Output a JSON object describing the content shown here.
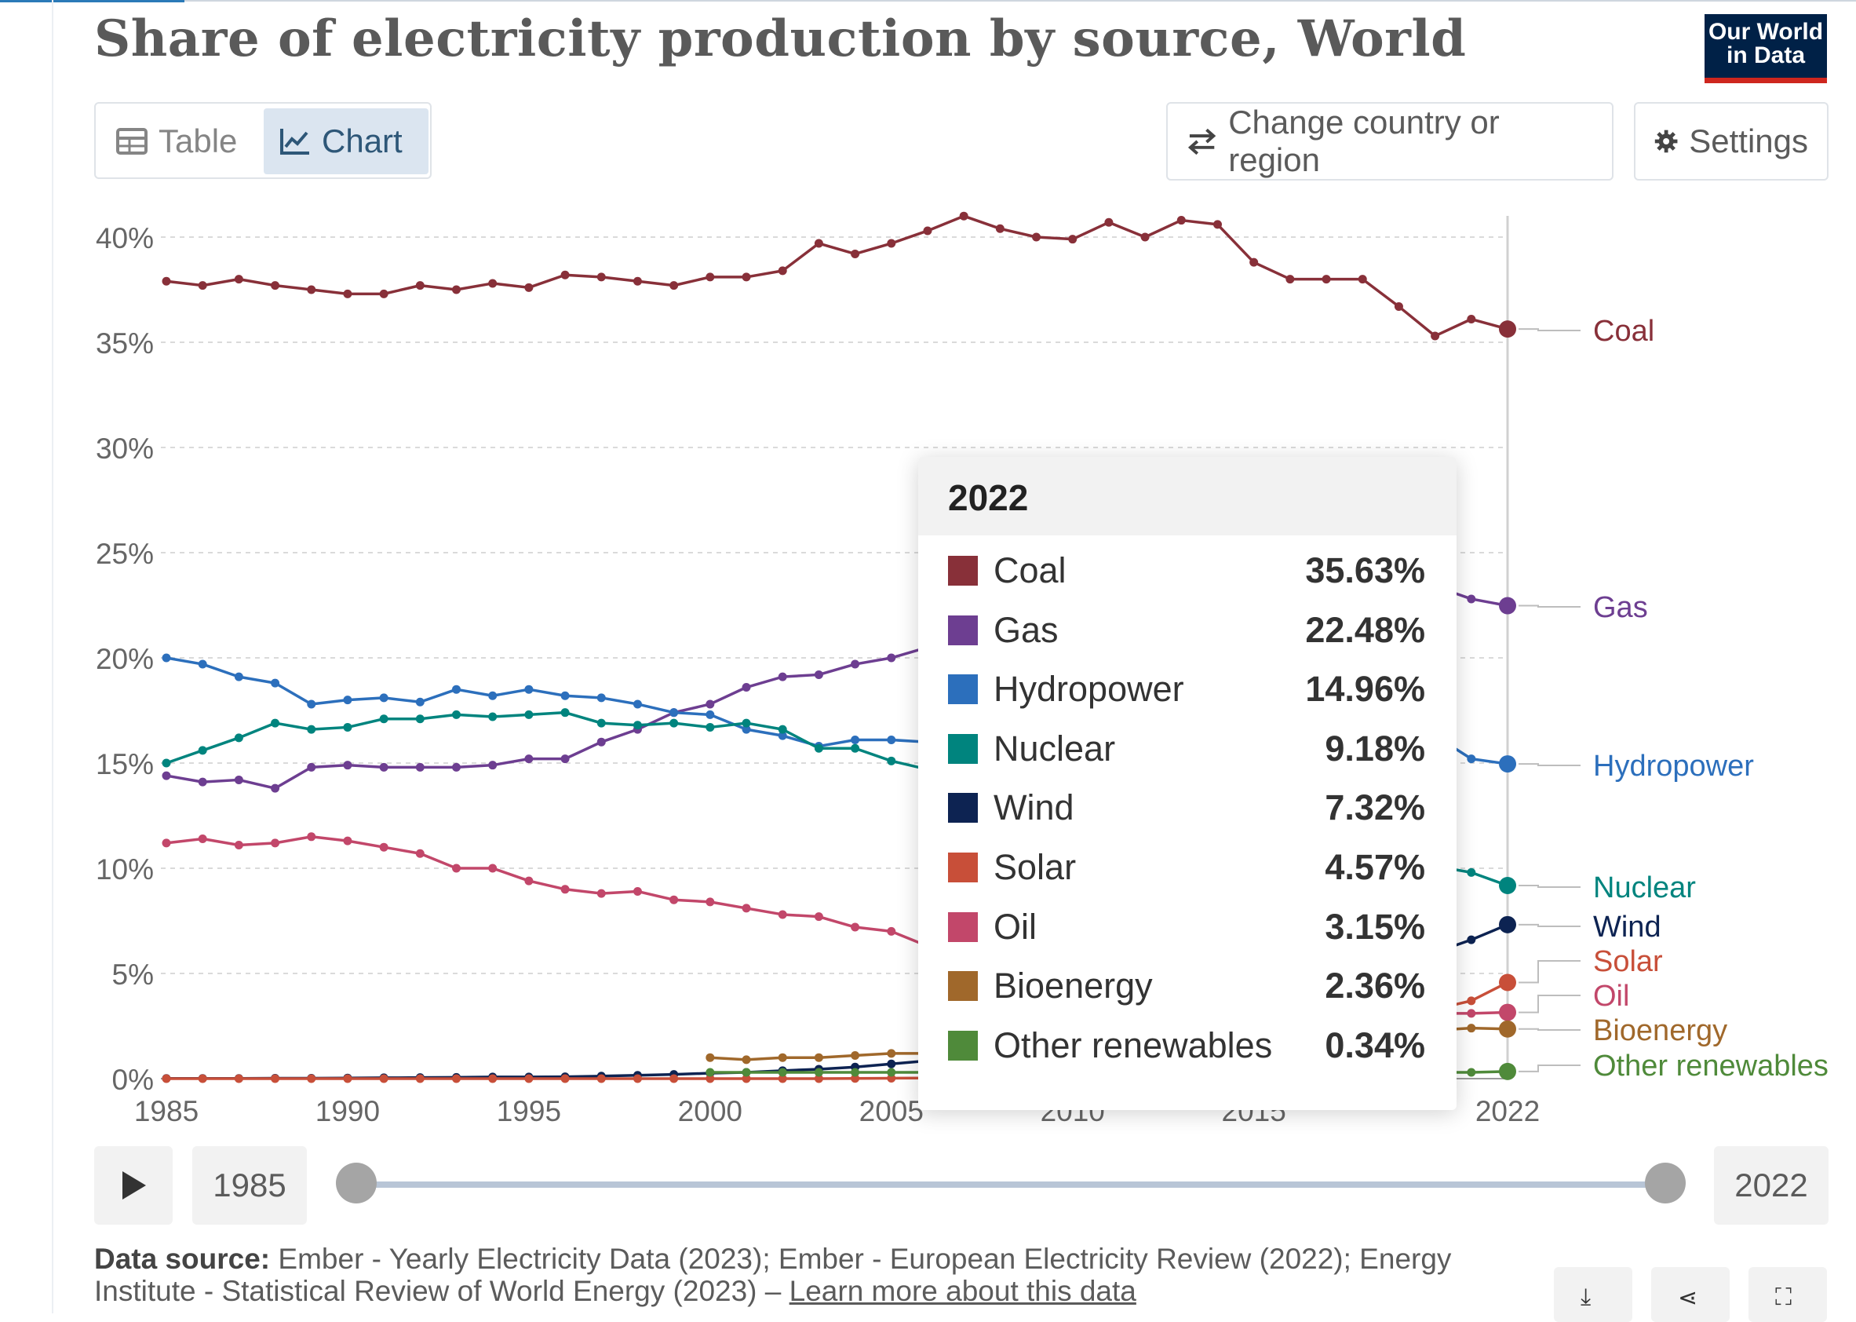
{
  "header": {
    "title": "Share of electricity production by source, World"
  },
  "logo": {
    "line1": "Our World",
    "line2": "in Data"
  },
  "tabs": [
    {
      "label": "Table",
      "icon": "table-icon",
      "active": false
    },
    {
      "label": "Chart",
      "icon": "line-chart-icon",
      "active": true
    }
  ],
  "controls": {
    "country_label": "Change country or region",
    "country_icon": "swap-arrows-icon",
    "settings_label": "Settings",
    "settings_icon": "gear-icon"
  },
  "tooltip": {
    "year": "2022",
    "rows": [
      {
        "name": "Coal",
        "value": "35.63%",
        "color": "#883039"
      },
      {
        "name": "Gas",
        "value": "22.48%",
        "color": "#6d3e91"
      },
      {
        "name": "Hydropower",
        "value": "14.96%",
        "color": "#2c6fbc"
      },
      {
        "name": "Nuclear",
        "value": "9.18%",
        "color": "#00847e"
      },
      {
        "name": "Wind",
        "value": "7.32%",
        "color": "#0d2352"
      },
      {
        "name": "Solar",
        "value": "4.57%",
        "color": "#c84f39"
      },
      {
        "name": "Oil",
        "value": "3.15%",
        "color": "#c2476a"
      },
      {
        "name": "Bioenergy",
        "value": "2.36%",
        "color": "#a0682b"
      },
      {
        "name": "Other renewables",
        "value": "0.34%",
        "color": "#4f8a3a"
      }
    ]
  },
  "timeline": {
    "start": "1985",
    "end": "2022",
    "play_icon": "play-icon"
  },
  "source": {
    "label": "Data source:",
    "text": "Ember - Yearly Electricity Data (2023); Ember - European Electricity Review (2022); Energy Institute - Statistical Review of World Energy (2023) –",
    "link": "Learn more about this data"
  },
  "footer_buttons": [
    {
      "icon": "download-icon",
      "glyph": "⤓"
    },
    {
      "icon": "share-icon",
      "glyph": "⋖"
    },
    {
      "icon": "fullscreen-icon",
      "glyph": "⛶"
    }
  ],
  "chart_data": {
    "type": "line",
    "title": "Share of electricity production by source, World",
    "x": [
      1985,
      1986,
      1987,
      1988,
      1989,
      1990,
      1991,
      1992,
      1993,
      1994,
      1995,
      1996,
      1997,
      1998,
      1999,
      2000,
      2001,
      2002,
      2003,
      2004,
      2005,
      2006,
      2007,
      2008,
      2009,
      2010,
      2011,
      2012,
      2013,
      2014,
      2015,
      2016,
      2017,
      2018,
      2019,
      2020,
      2021,
      2022
    ],
    "xticks": [
      "1985",
      "1990",
      "1995",
      "2000",
      "2005",
      "2010",
      "2015",
      "2022"
    ],
    "xtick_values": [
      1985,
      1990,
      1995,
      2000,
      2005,
      2010,
      2015,
      2022
    ],
    "ylim": [
      0,
      41
    ],
    "yticks": [
      0,
      5,
      10,
      15,
      20,
      25,
      30,
      35,
      40
    ],
    "ytick_labels": [
      "0%",
      "5%",
      "10%",
      "15%",
      "20%",
      "25%",
      "30%",
      "35%",
      "40%"
    ],
    "grid": true,
    "highlight_x": 2022,
    "series": [
      {
        "name": "Coal",
        "color": "#883039",
        "values": [
          37.9,
          37.7,
          38.0,
          37.7,
          37.5,
          37.3,
          37.3,
          37.7,
          37.5,
          37.8,
          37.6,
          38.2,
          38.1,
          37.9,
          37.7,
          38.1,
          38.1,
          38.4,
          39.7,
          39.2,
          39.7,
          40.3,
          41.0,
          40.4,
          40.0,
          39.9,
          40.7,
          40.0,
          40.8,
          40.6,
          38.8,
          38.0,
          38.0,
          38.0,
          36.7,
          35.3,
          36.1,
          35.63
        ]
      },
      {
        "name": "Gas",
        "color": "#6d3e91",
        "values": [
          14.4,
          14.1,
          14.2,
          13.8,
          14.8,
          14.9,
          14.8,
          14.8,
          14.8,
          14.9,
          15.2,
          15.2,
          16.0,
          16.6,
          17.4,
          17.8,
          18.6,
          19.1,
          19.2,
          19.7,
          20.0,
          20.5,
          21.1,
          21.4,
          21.5,
          22.0,
          22.2,
          22.8,
          22.3,
          22.1,
          22.9,
          23.2,
          23.3,
          23.2,
          23.5,
          23.4,
          22.8,
          22.48
        ]
      },
      {
        "name": "Hydropower",
        "color": "#2c6fbc",
        "values": [
          20.0,
          19.7,
          19.1,
          18.8,
          17.8,
          18.0,
          18.1,
          17.9,
          18.5,
          18.2,
          18.5,
          18.2,
          18.1,
          17.8,
          17.4,
          17.3,
          16.6,
          16.3,
          15.8,
          16.1,
          16.1,
          16.0,
          15.6,
          16.0,
          16.3,
          16.0,
          15.8,
          16.3,
          16.4,
          16.2,
          16.0,
          16.3,
          15.9,
          15.9,
          15.8,
          16.3,
          15.2,
          14.96
        ]
      },
      {
        "name": "Nuclear",
        "color": "#00847e",
        "values": [
          15.0,
          15.6,
          16.2,
          16.9,
          16.6,
          16.7,
          17.1,
          17.1,
          17.3,
          17.2,
          17.3,
          17.4,
          16.9,
          16.8,
          16.9,
          16.7,
          16.9,
          16.6,
          15.7,
          15.7,
          15.1,
          14.7,
          14.0,
          13.4,
          13.4,
          12.8,
          11.7,
          10.8,
          10.6,
          10.6,
          10.6,
          10.4,
          10.2,
          10.2,
          10.4,
          10.1,
          9.8,
          9.18
        ]
      },
      {
        "name": "Wind",
        "color": "#0d2352",
        "values": [
          0.01,
          0.01,
          0.01,
          0.02,
          0.02,
          0.03,
          0.04,
          0.05,
          0.06,
          0.08,
          0.08,
          0.09,
          0.12,
          0.16,
          0.2,
          0.26,
          0.3,
          0.38,
          0.45,
          0.55,
          0.7,
          0.85,
          1.0,
          1.3,
          1.6,
          2.0,
          2.4,
          2.8,
          3.0,
          3.4,
          3.8,
          4.2,
          4.7,
          5.0,
          5.5,
          6.0,
          6.6,
          7.32
        ]
      },
      {
        "name": "Solar",
        "color": "#c84f39",
        "values": [
          0,
          0,
          0,
          0,
          0,
          0,
          0,
          0,
          0,
          0,
          0,
          0,
          0,
          0,
          0,
          0,
          0,
          0,
          0,
          0.01,
          0.02,
          0.03,
          0.04,
          0.06,
          0.1,
          0.15,
          0.3,
          0.5,
          0.7,
          0.9,
          1.1,
          1.4,
          1.8,
          2.2,
          2.7,
          3.3,
          3.7,
          4.57
        ]
      },
      {
        "name": "Oil",
        "color": "#c2476a",
        "values": [
          11.2,
          11.4,
          11.1,
          11.2,
          11.5,
          11.3,
          11.0,
          10.7,
          10.0,
          10.0,
          9.4,
          9.0,
          8.8,
          8.9,
          8.5,
          8.4,
          8.1,
          7.8,
          7.7,
          7.2,
          7.0,
          6.3,
          5.8,
          5.5,
          5.2,
          4.9,
          4.6,
          4.7,
          4.3,
          4.2,
          4.1,
          3.8,
          3.6,
          3.4,
          3.2,
          3.1,
          3.1,
          3.15
        ]
      },
      {
        "name": "Bioenergy",
        "color": "#a0682b",
        "values": [
          null,
          null,
          null,
          null,
          null,
          null,
          null,
          null,
          null,
          null,
          null,
          null,
          null,
          null,
          null,
          1.0,
          0.9,
          1.0,
          1.0,
          1.1,
          1.2,
          1.2,
          1.3,
          1.4,
          1.5,
          1.5,
          1.6,
          1.7,
          1.8,
          1.9,
          2.0,
          2.1,
          2.1,
          2.2,
          2.3,
          2.3,
          2.4,
          2.36
        ]
      },
      {
        "name": "Other renewables",
        "color": "#4f8a3a",
        "values": [
          null,
          null,
          null,
          null,
          null,
          null,
          null,
          null,
          null,
          null,
          null,
          null,
          null,
          null,
          null,
          0.3,
          0.3,
          0.3,
          0.3,
          0.3,
          0.3,
          0.3,
          0.3,
          0.3,
          0.3,
          0.3,
          0.3,
          0.3,
          0.3,
          0.3,
          0.3,
          0.3,
          0.3,
          0.3,
          0.3,
          0.3,
          0.3,
          0.34
        ]
      }
    ]
  }
}
